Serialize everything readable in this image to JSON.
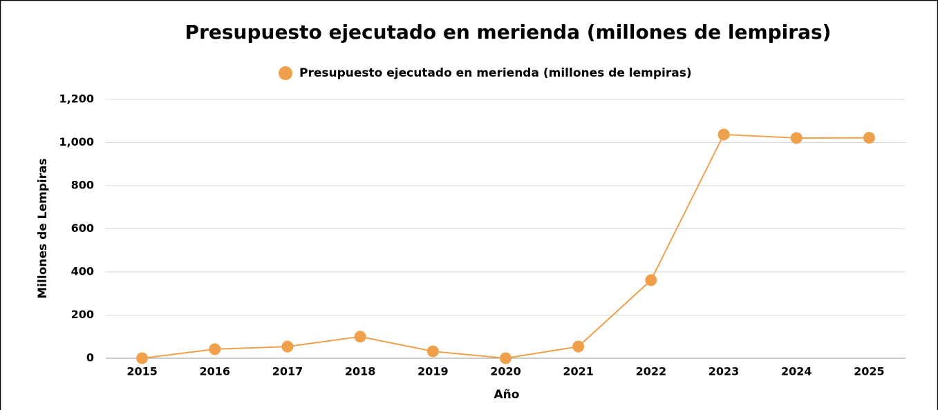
{
  "chart_data": {
    "type": "line",
    "title": "Presupuesto ejecutado en merienda (millones de lempiras)",
    "x_label": "Año",
    "y_label": "Millones de Lempiras",
    "categories": [
      "2015",
      "2016",
      "2017",
      "2018",
      "2019",
      "2020",
      "2021",
      "2022",
      "2023",
      "2024",
      "2025"
    ],
    "series": [
      {
        "name": "Presupuesto ejecutado en merienda (millones de lempiras)",
        "color": "#f0a04a",
        "values": [
          0,
          42,
          54,
          100,
          32,
          0,
          54,
          362,
          1037,
          1021,
          1022
        ]
      }
    ],
    "ylim": [
      0,
      1200
    ],
    "yticks": [
      0,
      200,
      400,
      600,
      800,
      {
        "value": 1000,
        "label": "1,000"
      },
      {
        "value": 1200,
        "label": "1,200"
      }
    ],
    "grid": true,
    "legend": "top"
  }
}
